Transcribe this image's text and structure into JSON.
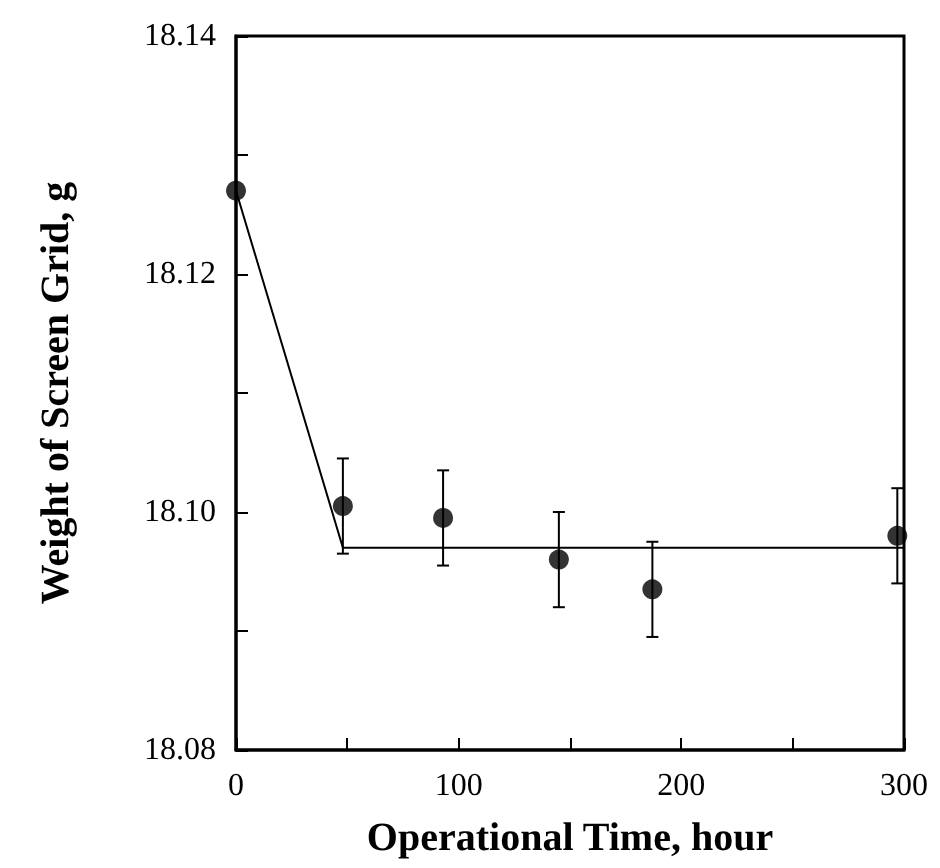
{
  "chart_data": {
    "type": "scatter",
    "xlabel": "Operational Time, hour",
    "ylabel": "Weight of Screen Grid, g",
    "xlim": [
      0,
      300
    ],
    "xticks": [
      0,
      {
        "value": 50,
        "label": null
      },
      100,
      {
        "value": 150,
        "label": null
      },
      200,
      {
        "value": 250,
        "label": null
      },
      300
    ],
    "ylim": [
      18.08,
      18.14
    ],
    "yticks": [
      {
        "value": 18.08,
        "label": "18.08"
      },
      {
        "value": 18.09,
        "label": null
      },
      {
        "value": 18.1,
        "label": "18.10"
      },
      {
        "value": 18.11,
        "label": null
      },
      {
        "value": 18.12,
        "label": "18.12"
      },
      {
        "value": 18.13,
        "label": null
      },
      {
        "value": 18.14,
        "label": "18.14"
      }
    ],
    "grid": false,
    "series": [
      {
        "color": "#000000",
        "marker": "circle",
        "x": [
          0,
          48,
          93,
          145,
          187,
          297
        ],
        "values": [
          18.127,
          18.1005,
          18.0995,
          18.096,
          18.0935,
          18.098
        ],
        "errors": [
          null,
          0.004,
          0.004,
          0.004,
          0.004,
          0.004
        ]
      },
      {
        "type": "line",
        "color": "#000000",
        "marker": "none",
        "line_style": "solid",
        "x": [
          0,
          48,
          300
        ],
        "values": [
          18.127,
          18.097,
          18.097
        ]
      }
    ]
  }
}
